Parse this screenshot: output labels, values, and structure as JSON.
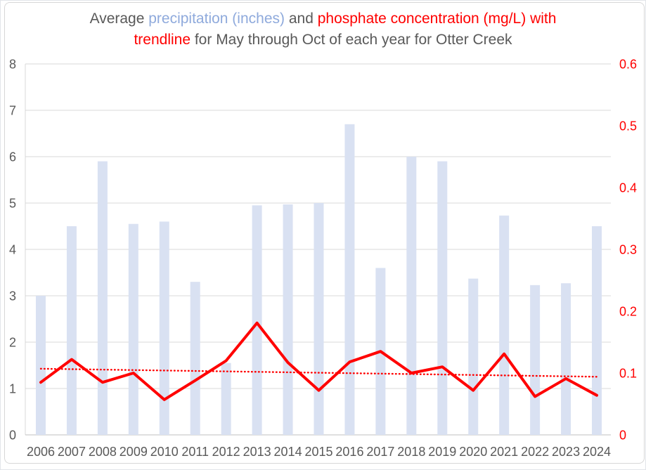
{
  "title": {
    "lines": [
      {
        "segments": [
          {
            "text": "Average ",
            "color": "#595959"
          },
          {
            "text": "precipitation (inches)",
            "color": "#8faadc"
          },
          {
            "text": " and ",
            "color": "#595959"
          },
          {
            "text": "phosphate concentration (mg/L) with",
            "color": "#ff0000"
          }
        ]
      },
      {
        "segments": [
          {
            "text": "trendline",
            "color": "#ff0000"
          },
          {
            "text": " for May through Oct of each year for Otter Creek",
            "color": "#595959"
          }
        ]
      }
    ]
  },
  "chart_data": {
    "type": "bar",
    "title": "Average precipitation (inches) and phosphate concentration (mg/L) with trendline for May through Oct of each year for Otter Creek",
    "categories": [
      "2006",
      "2007",
      "2008",
      "2009",
      "2010",
      "2011",
      "2012",
      "2013",
      "2014",
      "2015",
      "2016",
      "2017",
      "2018",
      "2019",
      "2020",
      "2021",
      "2022",
      "2023",
      "2024"
    ],
    "series": [
      {
        "name": "precipitation (inches)",
        "type": "bar",
        "axis": "left",
        "color": "#d9e1f2",
        "values": [
          3.0,
          4.5,
          5.9,
          4.55,
          4.6,
          3.3,
          1.55,
          4.95,
          4.97,
          5.0,
          6.7,
          3.6,
          6.0,
          5.9,
          3.37,
          4.73,
          3.23,
          3.27,
          4.5
        ]
      },
      {
        "name": "phosphate concentration (mg/L)",
        "type": "line",
        "axis": "right",
        "color": "#ff0000",
        "values": [
          0.085,
          0.122,
          0.085,
          0.1,
          0.057,
          0.088,
          0.12,
          0.181,
          0.117,
          0.072,
          0.118,
          0.135,
          0.1,
          0.11,
          0.072,
          0.131,
          0.062,
          0.091,
          0.064
        ]
      },
      {
        "name": "trendline",
        "type": "dotted-line",
        "axis": "right",
        "color": "#ff0000",
        "endpoints": [
          0.107,
          0.094
        ]
      }
    ],
    "left_axis": {
      "min": 0,
      "max": 8,
      "step": 1,
      "ticks": [
        "0",
        "1",
        "2",
        "3",
        "4",
        "5",
        "6",
        "7",
        "8"
      ],
      "color": "#595959"
    },
    "right_axis": {
      "min": 0,
      "max": 0.6,
      "step": 0.1,
      "ticks": [
        "0",
        "0.1",
        "0.2",
        "0.3",
        "0.4",
        "0.5",
        "0.6"
      ],
      "color": "#ff0000"
    },
    "x_axis": {
      "label_color": "#595959"
    },
    "grid": {
      "on": true,
      "color": "#d9d9d9",
      "axis_line_color": "#bfbfbf"
    },
    "legend": "none"
  }
}
